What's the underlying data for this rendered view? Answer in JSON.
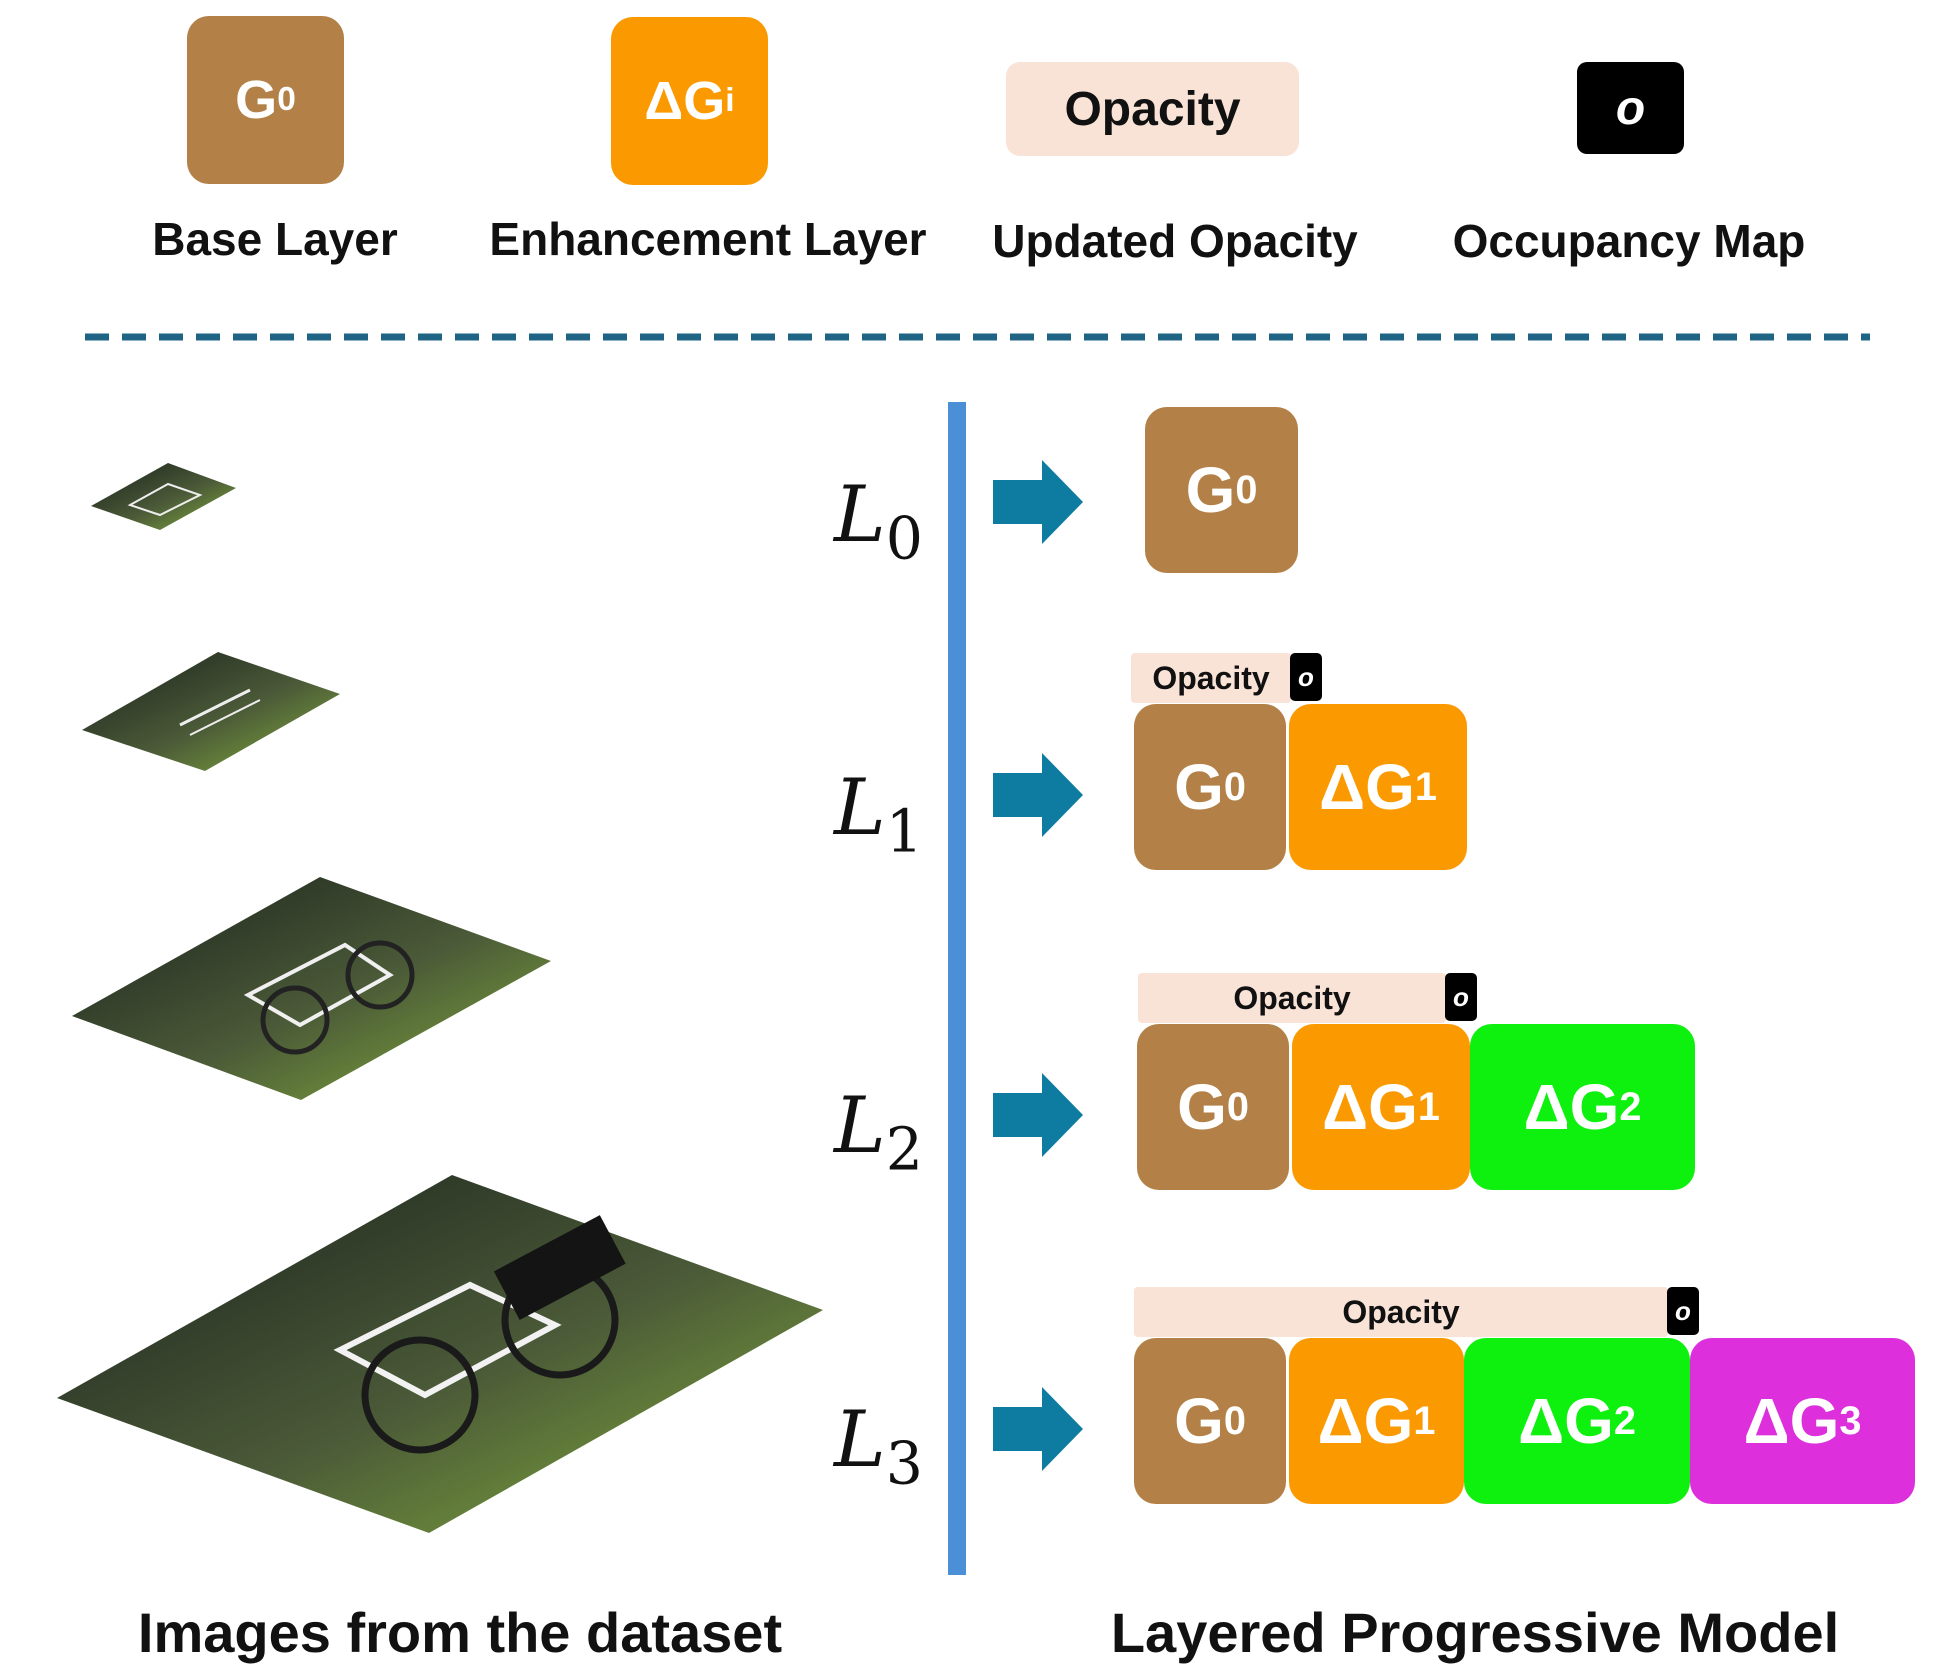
{
  "legend": {
    "base": {
      "glyph": "G",
      "sub": "0",
      "label": "Base Layer"
    },
    "enhancement": {
      "glyph": "ΔG",
      "sub": "i",
      "label": "Enhancement Layer"
    },
    "opacity": {
      "glyph": "Opacity",
      "label": "Updated Opacity"
    },
    "occupancy": {
      "glyph": "o",
      "label": "Occupancy Map"
    }
  },
  "levels": [
    {
      "symbol": "L",
      "sub": "0"
    },
    {
      "symbol": "L",
      "sub": "1"
    },
    {
      "symbol": "L",
      "sub": "2"
    },
    {
      "symbol": "L",
      "sub": "3"
    }
  ],
  "blocks": {
    "g0": {
      "glyph": "G",
      "sub": "0"
    },
    "dg1": {
      "glyph": "ΔG",
      "sub": "1"
    },
    "dg2": {
      "glyph": "ΔG",
      "sub": "2"
    },
    "dg3": {
      "glyph": "ΔG",
      "sub": "3"
    }
  },
  "opacity_label": "Opacity",
  "occupancy_glyph": "o",
  "titles": {
    "left": "Images from the dataset",
    "right": "Layered Progressive Model"
  },
  "colors": {
    "base": "#b38147",
    "enhancement_1": "#fb9a00",
    "enhancement_2": "#0ef00e",
    "enhancement_3": "#dd2fdb",
    "opacity": "#f9e2d6",
    "arrow": "#0e7ca1",
    "divider": "#1f6485",
    "vertical_line": "#4b8fd6"
  },
  "icons": [
    "right-arrow-icon"
  ]
}
